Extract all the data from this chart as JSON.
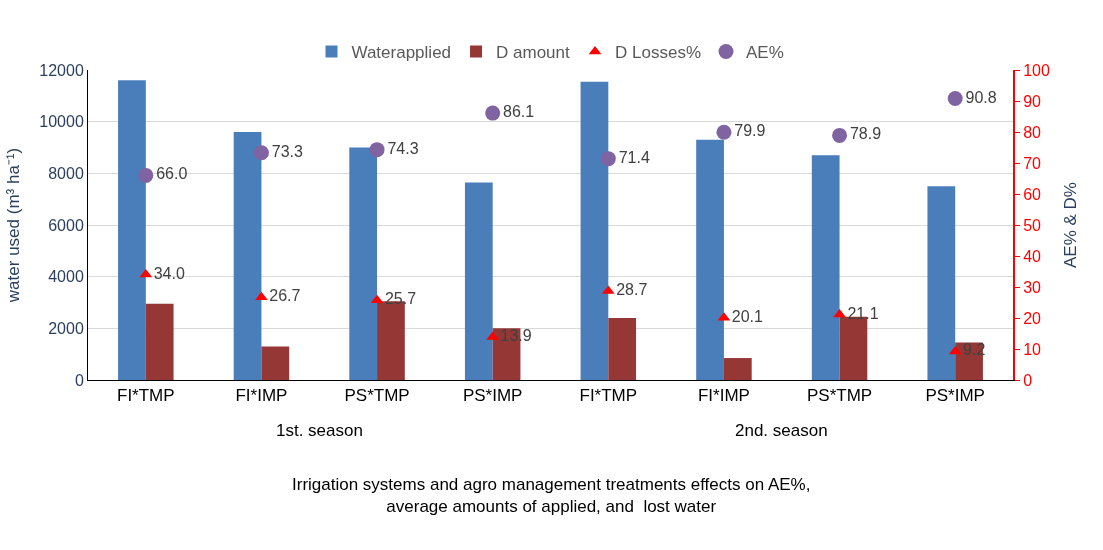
{
  "chart_data": {
    "type": "bar",
    "categories": [
      "FI*TMP",
      "FI*IMP",
      "PS*TMP",
      "PS*IMP",
      "FI*TMP",
      "FI*IMP",
      "PS*TMP",
      "PS*IMP"
    ],
    "series": [
      {
        "name": "Waterapplied",
        "color": "#4a7ebb",
        "values": [
          11600,
          9600,
          9000,
          7650,
          11550,
          9300,
          8700,
          7500
        ]
      },
      {
        "name": "D amount",
        "color": "#953735",
        "values": [
          2950,
          1300,
          3050,
          2000,
          2400,
          850,
          2450,
          1450
        ]
      },
      {
        "name": "D Losses%",
        "type": "scatter",
        "axis": "y2",
        "marker": "triangle",
        "color": "#ff0000",
        "values": [
          34.0,
          26.7,
          25.7,
          13.9,
          28.7,
          20.1,
          21.1,
          9.2
        ],
        "value_labels": [
          "34.0",
          "26.7",
          "25.7",
          "13.9",
          "28.7",
          "20.1",
          "21.1",
          "9.2"
        ]
      },
      {
        "name": "AE%",
        "type": "scatter",
        "axis": "y2",
        "marker": "circle",
        "color": "#8064a2",
        "values": [
          66.0,
          73.3,
          74.3,
          86.1,
          71.4,
          79.9,
          78.9,
          90.8
        ],
        "value_labels": [
          "66.0",
          "73.3",
          "74.3",
          "86.1",
          "71.4",
          "79.9",
          "78.9",
          "90.8"
        ]
      }
    ],
    "ylabel": "water used (m³ ha⁻¹)",
    "y2label": "AE% & D%",
    "xlabel": "Irrigation systems and agro management treatments effects on AE%,\naverage amounts of applied, and  lost water",
    "annotations": [
      "1st. season",
      "2nd. season"
    ],
    "ylim": [
      0,
      12000
    ],
    "yticks": [
      0,
      2000,
      4000,
      6000,
      8000,
      10000,
      12000
    ],
    "y2lim": [
      0,
      100
    ],
    "y2ticks": [
      0,
      10,
      20,
      30,
      40,
      50,
      60,
      70,
      80,
      90,
      100
    ],
    "grid": "y",
    "legend": "top"
  }
}
